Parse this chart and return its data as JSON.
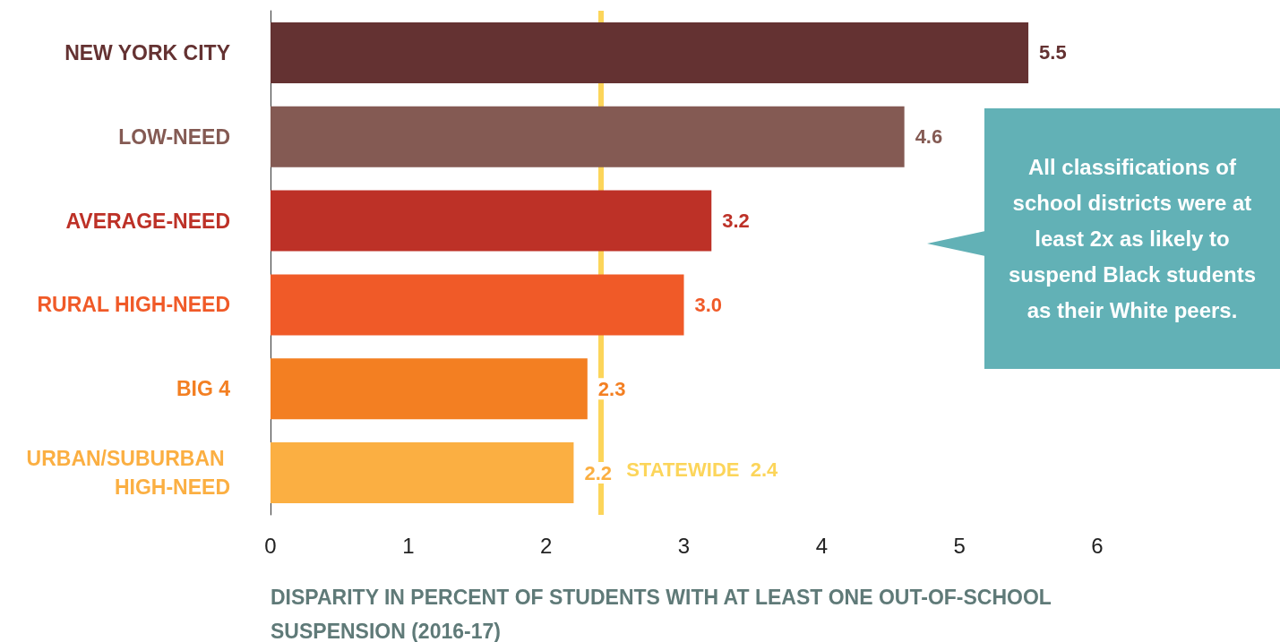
{
  "chart_data": {
    "type": "bar",
    "orientation": "horizontal",
    "xlabel": "DISPARITY IN PERCENT OF STUDENTS WITH AT LEAST ONE OUT-OF-SCHOOL SUSPENSION (2016-17)",
    "categories": [
      "NEW YORK CITY",
      "LOW-NEED",
      "AVERAGE-NEED",
      "RURAL HIGH-NEED",
      "BIG 4",
      "URBAN/SUBURBAN HIGH-NEED"
    ],
    "values": [
      5.5,
      4.6,
      3.2,
      3.0,
      2.3,
      2.2
    ],
    "value_labels": [
      "5.5",
      "4.6",
      "3.2",
      "3.0",
      "2.3",
      "2.2"
    ],
    "colors": [
      "#643232",
      "#845a53",
      "#bd3127",
      "#f05a28",
      "#f37f22",
      "#fbaf42"
    ],
    "xlim": [
      0,
      6
    ],
    "xticks": [
      0,
      1,
      2,
      3,
      4,
      5,
      6
    ],
    "grid": false,
    "ref_lines": [
      {
        "axis": "x",
        "value": 2.4,
        "label": "STATEWIDE  2.4",
        "color": "#fcd55a"
      }
    ],
    "annotations": [
      "All classifications of school districts were at least 2x as likely to suspend Black students as their White peers."
    ]
  }
}
